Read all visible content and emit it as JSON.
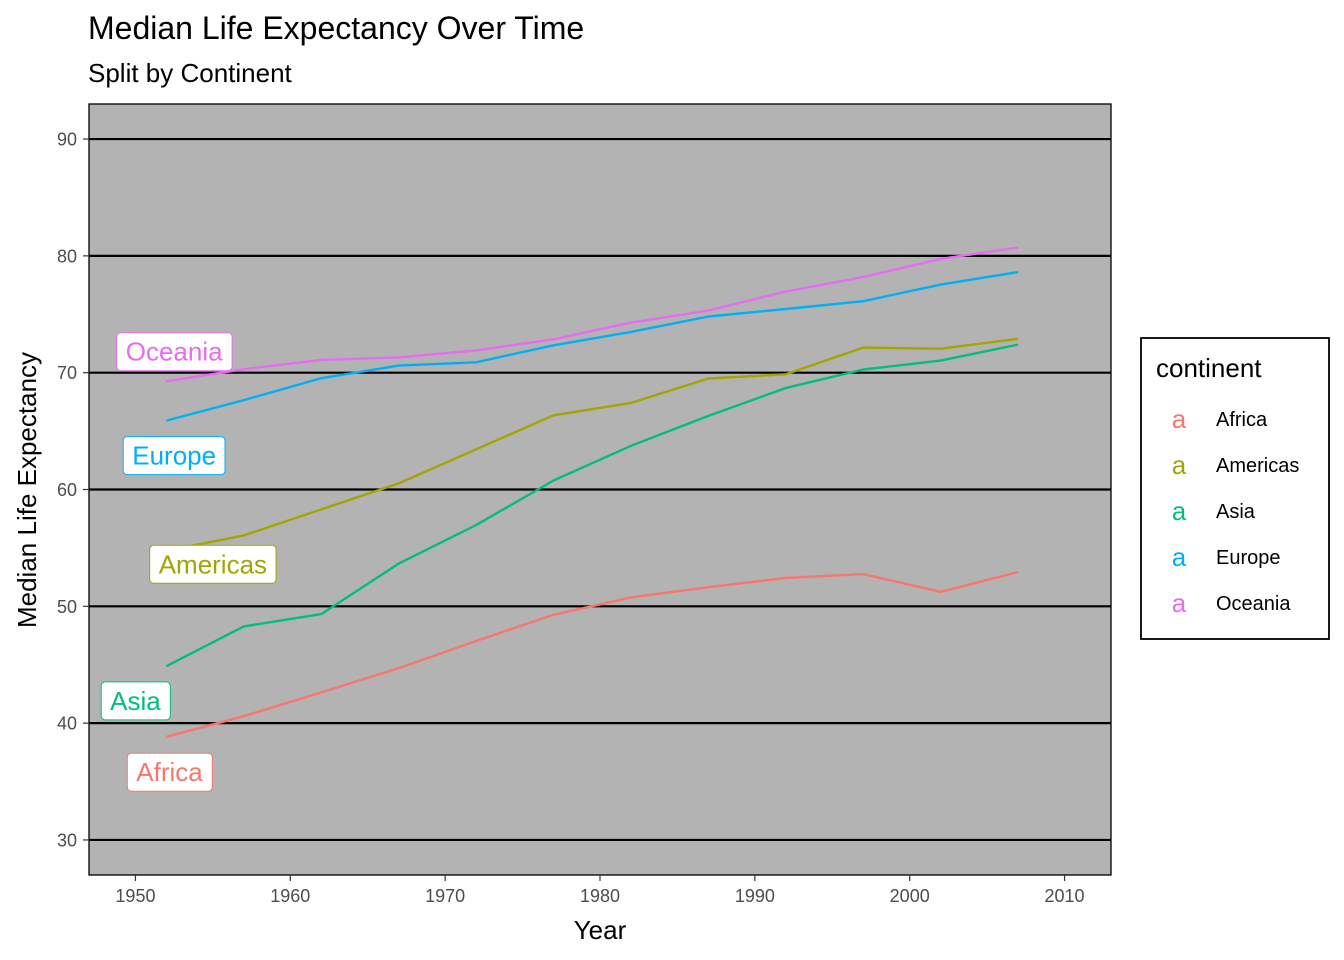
{
  "chart_data": {
    "type": "line",
    "title": "Median Life Expectancy Over Time",
    "subtitle": "Split by Continent",
    "xlabel": "Year",
    "ylabel": "Median Life Expectancy",
    "xlim": [
      1947,
      2013
    ],
    "ylim": [
      27,
      93
    ],
    "xticks": [
      1950,
      1960,
      1970,
      1980,
      1990,
      2000,
      2010
    ],
    "yticks": [
      30,
      40,
      50,
      60,
      70,
      80,
      90
    ],
    "grid": "horizontal-major",
    "panel_background": "#b3b3b3",
    "x": [
      1952,
      1957,
      1962,
      1967,
      1972,
      1977,
      1982,
      1987,
      1992,
      1997,
      2002,
      2007
    ],
    "legend": {
      "title": "continent",
      "position": "right",
      "key_glyph": "a"
    },
    "series": [
      {
        "name": "Africa",
        "color": "#F8766D",
        "values": [
          38.83,
          40.59,
          42.63,
          44.7,
          47.03,
          49.27,
          50.76,
          51.64,
          52.43,
          52.76,
          51.24,
          52.93
        ],
        "label": {
          "text": "Africa",
          "x": 1952.2,
          "y": 35.8
        }
      },
      {
        "name": "Americas",
        "color": "#A3A500",
        "values": [
          54.75,
          56.07,
          58.3,
          60.52,
          63.44,
          66.35,
          67.41,
          69.5,
          69.86,
          72.15,
          72.05,
          72.9
        ],
        "label": {
          "text": "Americas",
          "x": 1955.0,
          "y": 53.6
        }
      },
      {
        "name": "Asia",
        "color": "#00BF7D",
        "values": [
          44.87,
          48.28,
          49.33,
          53.66,
          56.95,
          60.77,
          63.74,
          66.3,
          68.69,
          70.27,
          71.03,
          72.4
        ],
        "label": {
          "text": "Asia",
          "x": 1950.0,
          "y": 41.9
        }
      },
      {
        "name": "Europe",
        "color": "#00B0F6",
        "values": [
          65.9,
          67.65,
          69.53,
          70.61,
          70.89,
          72.34,
          73.49,
          74.81,
          75.45,
          76.12,
          77.54,
          78.61
        ],
        "label": {
          "text": "Europe",
          "x": 1952.5,
          "y": 62.9
        }
      },
      {
        "name": "Oceania",
        "color": "#E76BF3",
        "values": [
          69.26,
          70.3,
          71.09,
          71.31,
          71.91,
          72.86,
          74.29,
          75.32,
          76.94,
          78.19,
          79.74,
          80.72
        ],
        "label": {
          "text": "Oceania",
          "x": 1952.5,
          "y": 71.8
        }
      }
    ]
  }
}
